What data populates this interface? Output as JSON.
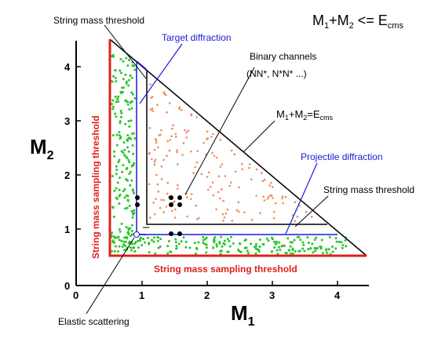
{
  "formula": {
    "main": "M",
    "one": "1",
    "plus": "+M",
    "two": "2",
    "rel": " <= E",
    "cms": "cms"
  },
  "labels": {
    "string_threshold_top": "String mass threshold",
    "target_diffraction": "Target diffraction",
    "binary_channels": "Binary channels",
    "binary_channels_sub": "(NN*, N*N* ...)",
    "kinematic_limit": {
      "main": "M",
      "one": "1",
      "plus": "+M",
      "two": "2",
      "eq": "=E",
      "cms": "cms"
    },
    "projectile_diffraction": "Projectile diffraction",
    "string_threshold_right": "String mass threshold",
    "sampling_threshold_vertical": "String mass sampling threshold",
    "sampling_threshold_horizontal": "String mass sampling threshold",
    "elastic_scattering": "Elastic scattering"
  },
  "axes": {
    "x_label": "M",
    "x_sub": "1",
    "y_label": "M",
    "y_sub": "2",
    "x_ticks": [
      "0",
      "1",
      "2",
      "3",
      "4"
    ],
    "y_ticks": [
      "0",
      "1",
      "2",
      "3",
      "4"
    ]
  },
  "colors": {
    "sampling_threshold": "#e0201b",
    "diffraction": "#1a1ad6",
    "string_threshold": "#000000",
    "green_points": "#29c629",
    "orange_points": "#ef8a5a",
    "binary_points": "#000000"
  }
}
